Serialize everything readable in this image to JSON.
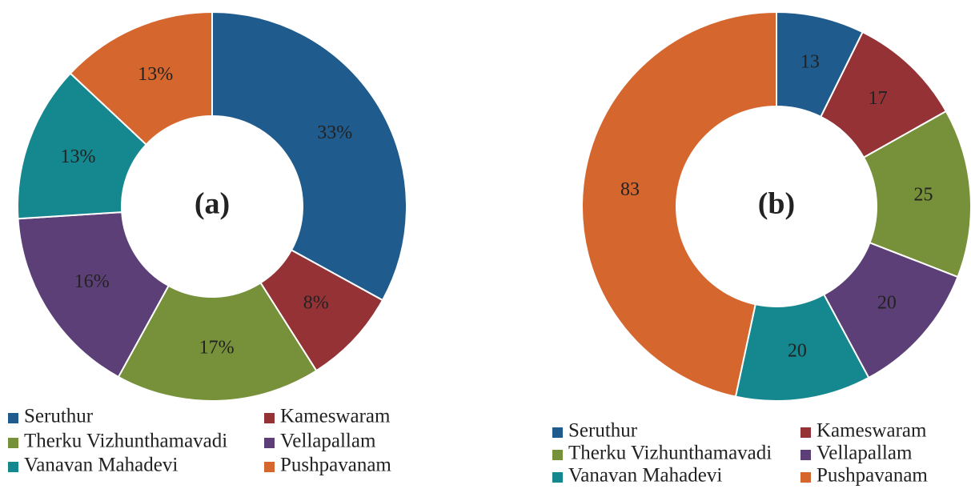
{
  "chart_data": [
    {
      "type": "pie",
      "title": "(a)",
      "categories": [
        "Seruthur",
        "Kameswaram",
        "Therku Vizhunthamavadi",
        "Vellapallam",
        "Vanavan Mahadevi",
        "Pushpavanam"
      ],
      "colors": [
        "#1f5b8c",
        "#943235",
        "#77903a",
        "#5b3f76",
        "#14878f",
        "#d4662e"
      ],
      "values": [
        33,
        8,
        17,
        16,
        13,
        13
      ],
      "value_labels": [
        "33%",
        "8%",
        "17%",
        "16%",
        "13%",
        "13%"
      ]
    },
    {
      "type": "pie",
      "title": "(b)",
      "categories": [
        "Seruthur",
        "Kameswaram",
        "Therku Vizhunthamavadi",
        "Vellapallam",
        "Vanavan Mahadevi",
        "Pushpavanam"
      ],
      "colors": [
        "#1f5b8c",
        "#943235",
        "#77903a",
        "#5b3f76",
        "#14878f",
        "#d4662e"
      ],
      "values": [
        13,
        17,
        25,
        20,
        20,
        83
      ]
    }
  ]
}
